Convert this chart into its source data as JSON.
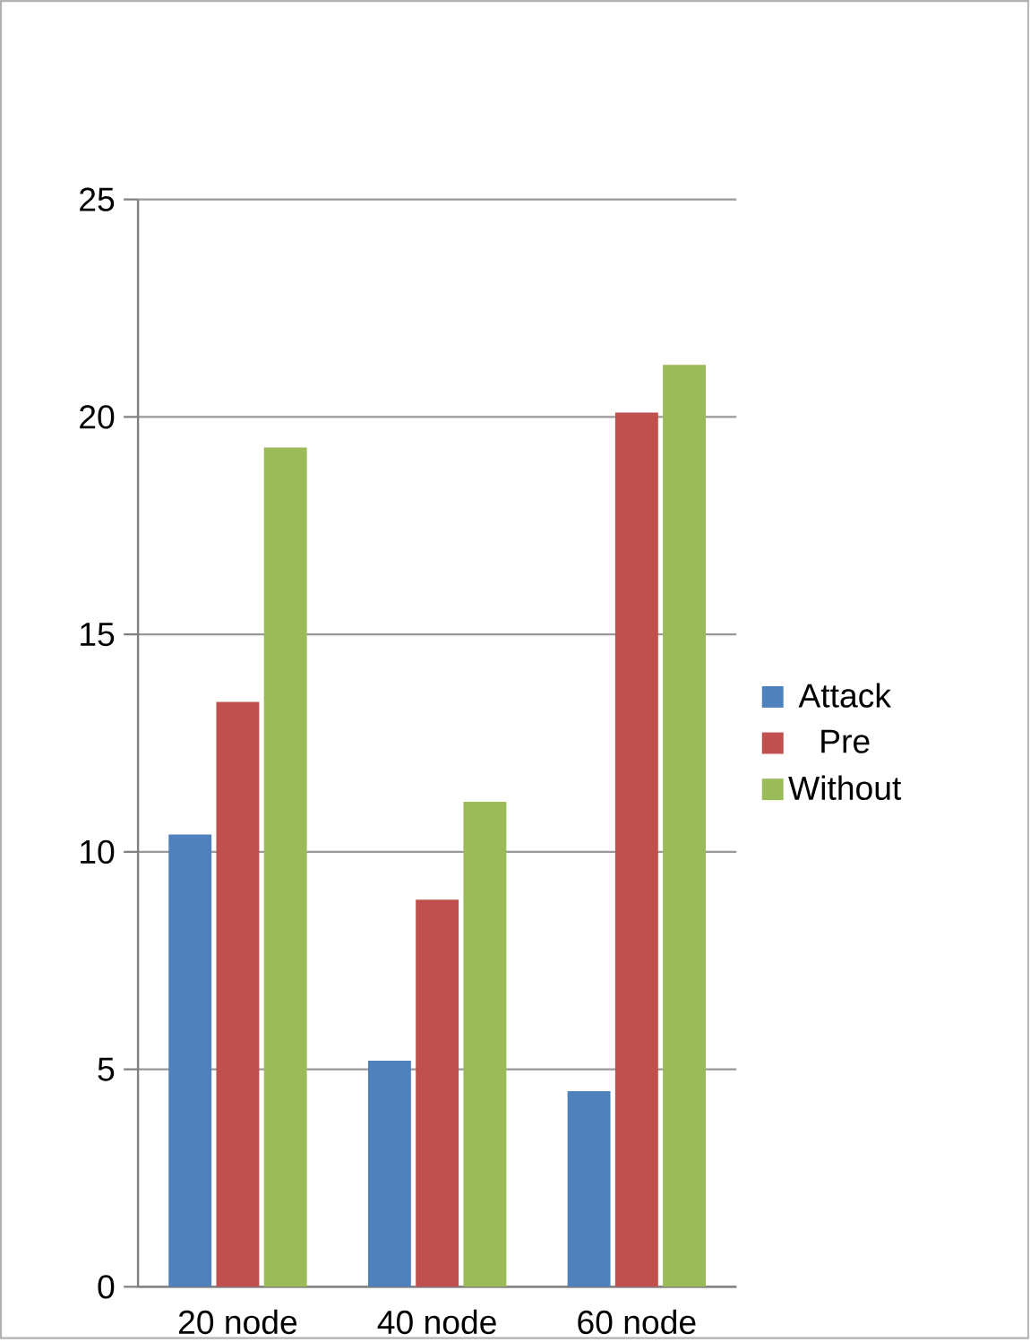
{
  "chart_data": {
    "type": "bar",
    "categories": [
      "20 node",
      "40 node",
      "60 node"
    ],
    "series": [
      {
        "name": "Attack",
        "color": "#4f81bd",
        "values": [
          10.4,
          5.2,
          4.5
        ]
      },
      {
        "name": "Pre",
        "color": "#c0504d",
        "values": [
          13.45,
          8.9,
          20.1
        ]
      },
      {
        "name": "Without",
        "color": "#9bbb59",
        "values": [
          19.3,
          11.15,
          21.2
        ]
      }
    ],
    "ylim": [
      0,
      25
    ],
    "yticks": [
      0,
      5,
      10,
      15,
      20,
      25
    ],
    "grid": "y",
    "legend": "right"
  }
}
